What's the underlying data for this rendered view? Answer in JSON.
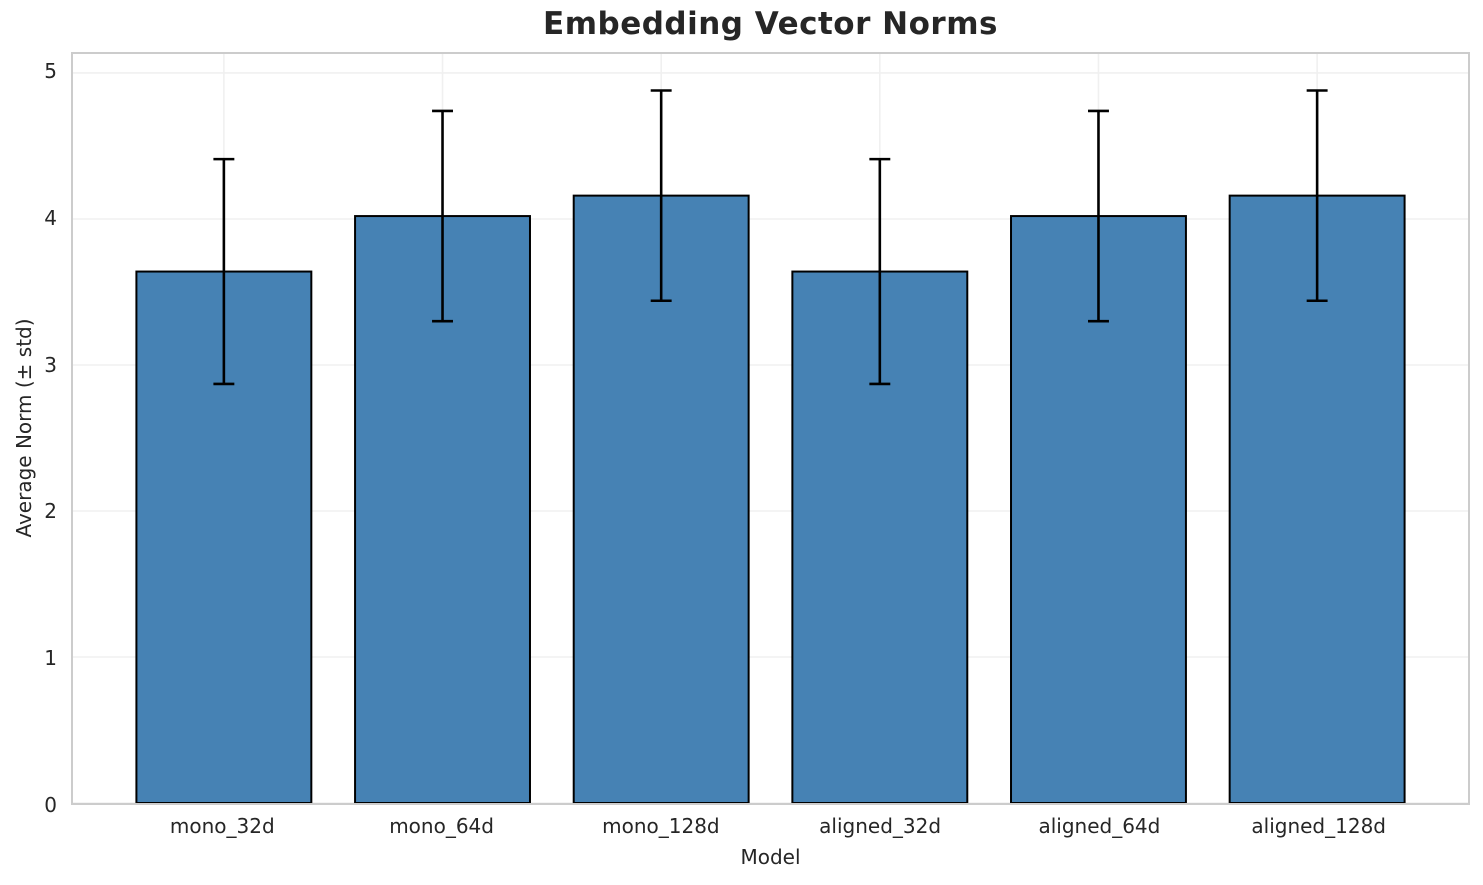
{
  "chart_data": {
    "type": "bar",
    "title": "Embedding Vector Norms",
    "xlabel": "Model",
    "ylabel": "Average Norm (± std)",
    "categories": [
      "mono_32d",
      "mono_64d",
      "mono_128d",
      "aligned_32d",
      "aligned_64d",
      "aligned_128d"
    ],
    "values": [
      3.64,
      4.02,
      4.16,
      3.64,
      4.02,
      4.16
    ],
    "errors": [
      0.77,
      0.72,
      0.72,
      0.77,
      0.72,
      0.72
    ],
    "yticks": [
      0,
      1,
      2,
      3,
      4,
      5
    ],
    "ylim": [
      0,
      5.13
    ],
    "grid": true,
    "legend": false,
    "colors": {
      "bar_fill": "#4682B4",
      "bar_edge": "#000000",
      "error_bar": "#000000",
      "gridline": "#f0f0f0",
      "spine": "#cccccc",
      "text": "#262626",
      "background": "#ffffff"
    }
  }
}
